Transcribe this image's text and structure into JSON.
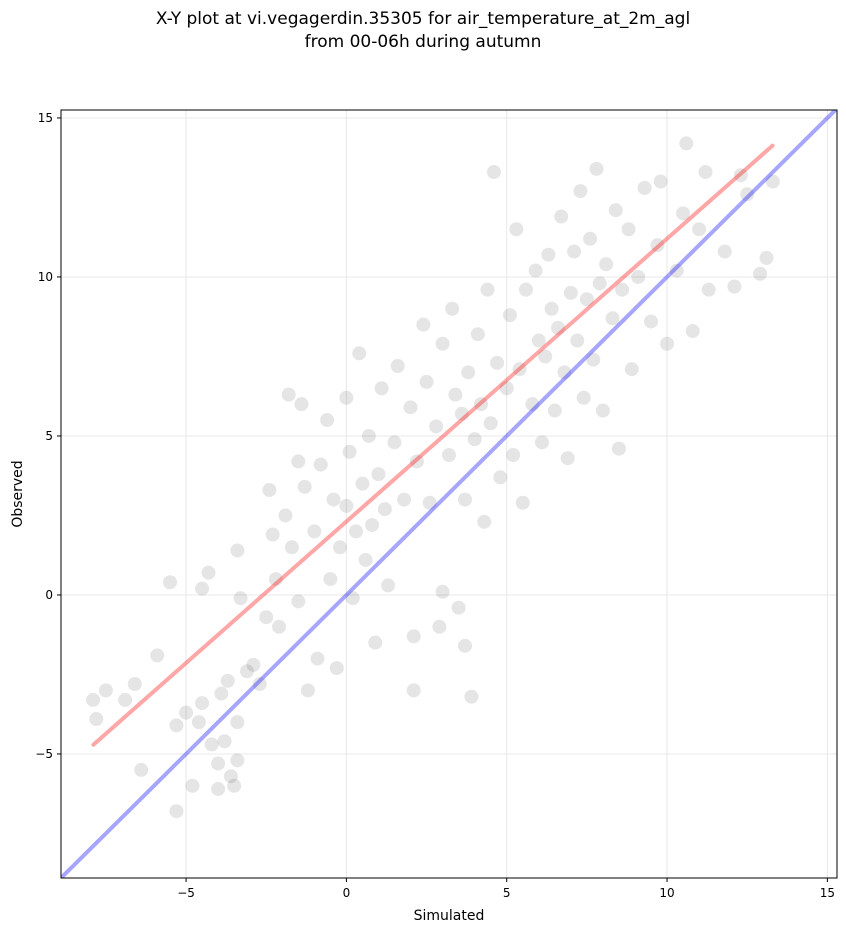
{
  "chart_data": {
    "type": "scatter",
    "title": [
      "X-Y plot at vi.vegagerdin.35305 for air_temperature_at_2m_agl",
      "from 00-06h during autumn"
    ],
    "x_label": "Simulated",
    "y_label": "Observed",
    "xlim": [
      -8.9,
      15.3
    ],
    "ylim": [
      -8.9,
      15.25
    ],
    "xticks": [
      {
        "value": -5,
        "label": "−5"
      },
      0,
      5,
      10,
      15
    ],
    "yticks": [
      {
        "value": -5,
        "label": "−5"
      },
      0,
      5,
      10,
      15
    ],
    "grid": true,
    "color": "#000000",
    "x": [
      -7.9,
      -7.8,
      -7.5,
      -6.9,
      -6.6,
      -6.4,
      -5.9,
      -5.5,
      -5.3,
      -5.3,
      -5.0,
      -4.8,
      -4.6,
      -4.5,
      -4.5,
      -4.3,
      -4.2,
      -4.0,
      -4.0,
      -3.9,
      -3.8,
      -3.7,
      -3.6,
      -3.5,
      -3.4,
      -3.4,
      -3.4,
      -3.3,
      -3.1,
      -2.9,
      -2.7,
      -2.5,
      -2.4,
      -2.3,
      -2.2,
      -2.1,
      -1.9,
      -1.8,
      -1.7,
      -1.5,
      -1.5,
      -1.4,
      -1.3,
      -1.2,
      -1.0,
      -0.9,
      -0.8,
      -0.6,
      -0.5,
      -0.4,
      -0.3,
      -0.2,
      0.0,
      0.0,
      0.1,
      0.2,
      0.3,
      0.4,
      0.5,
      0.6,
      0.7,
      0.8,
      0.9,
      1.0,
      1.1,
      1.2,
      1.3,
      1.5,
      1.6,
      1.8,
      2.0,
      2.1,
      2.1,
      2.2,
      2.4,
      2.5,
      2.6,
      2.8,
      2.9,
      3.0,
      3.0,
      3.2,
      3.3,
      3.4,
      3.5,
      3.6,
      3.7,
      3.7,
      3.8,
      3.9,
      4.0,
      4.1,
      4.2,
      4.3,
      4.4,
      4.5,
      4.6,
      4.7,
      4.8,
      5.0,
      5.1,
      5.2,
      5.3,
      5.4,
      5.5,
      5.6,
      5.8,
      5.9,
      6.0,
      6.1,
      6.2,
      6.3,
      6.4,
      6.5,
      6.6,
      6.7,
      6.8,
      6.9,
      7.0,
      7.1,
      7.2,
      7.3,
      7.4,
      7.5,
      7.6,
      7.7,
      7.8,
      7.9,
      8.0,
      8.1,
      8.3,
      8.4,
      8.5,
      8.6,
      8.8,
      8.9,
      9.1,
      9.3,
      9.5,
      9.7,
      9.8,
      10.0,
      10.3,
      10.5,
      10.6,
      10.8,
      11.0,
      11.2,
      11.3,
      11.8,
      12.1,
      12.3,
      12.5,
      12.9,
      13.1,
      13.3
    ],
    "values": [
      -3.3,
      -3.9,
      -3.0,
      -3.3,
      -2.8,
      -5.5,
      -1.9,
      0.4,
      -4.1,
      -6.8,
      -3.7,
      -6.0,
      -4.0,
      -3.4,
      0.2,
      0.7,
      -4.7,
      -6.1,
      -5.3,
      -3.1,
      -4.6,
      -2.7,
      -5.7,
      -6.0,
      -4.0,
      -5.2,
      1.4,
      -0.1,
      -2.4,
      -2.2,
      -2.8,
      -0.7,
      3.3,
      1.9,
      0.5,
      -1.0,
      2.5,
      6.3,
      1.5,
      -0.2,
      4.2,
      6.0,
      3.4,
      -3.0,
      2.0,
      -2.0,
      4.1,
      5.5,
      0.5,
      3.0,
      -2.3,
      1.5,
      2.8,
      6.2,
      4.5,
      -0.1,
      2.0,
      7.6,
      3.5,
      1.1,
      5.0,
      2.2,
      -1.5,
      3.8,
      6.5,
      2.7,
      0.3,
      4.8,
      7.2,
      3.0,
      5.9,
      -1.3,
      -3.0,
      4.2,
      8.5,
      6.7,
      2.9,
      5.3,
      -1.0,
      7.9,
      0.1,
      4.4,
      9.0,
      6.3,
      -0.4,
      5.7,
      3.0,
      -1.6,
      7.0,
      -3.2,
      4.9,
      8.2,
      6.0,
      2.3,
      9.6,
      5.4,
      13.3,
      7.3,
      3.7,
      6.5,
      8.8,
      4.4,
      11.5,
      7.1,
      2.9,
      9.6,
      6.0,
      10.2,
      8.0,
      4.8,
      7.5,
      10.7,
      9.0,
      5.8,
      8.4,
      11.9,
      7.0,
      4.3,
      9.5,
      10.8,
      8.0,
      12.7,
      6.2,
      9.3,
      11.2,
      7.4,
      13.4,
      9.8,
      5.8,
      10.4,
      8.7,
      12.1,
      4.6,
      9.6,
      11.5,
      7.1,
      10.0,
      12.8,
      8.6,
      11.0,
      13.0,
      7.9,
      10.2,
      12.0,
      14.2,
      8.3,
      11.5,
      13.3,
      9.6,
      10.8,
      9.7,
      13.2,
      12.6,
      10.1,
      10.6,
      13.0
    ],
    "lines": [
      {
        "color": "#ff0000",
        "x": [
          -7.89,
          13.29
        ],
        "values": [
          -4.71,
          14.13
        ]
      },
      {
        "color": "#0000ff",
        "x": [
          -8.9,
          15.3
        ],
        "values": [
          -8.9,
          15.3
        ]
      }
    ]
  }
}
